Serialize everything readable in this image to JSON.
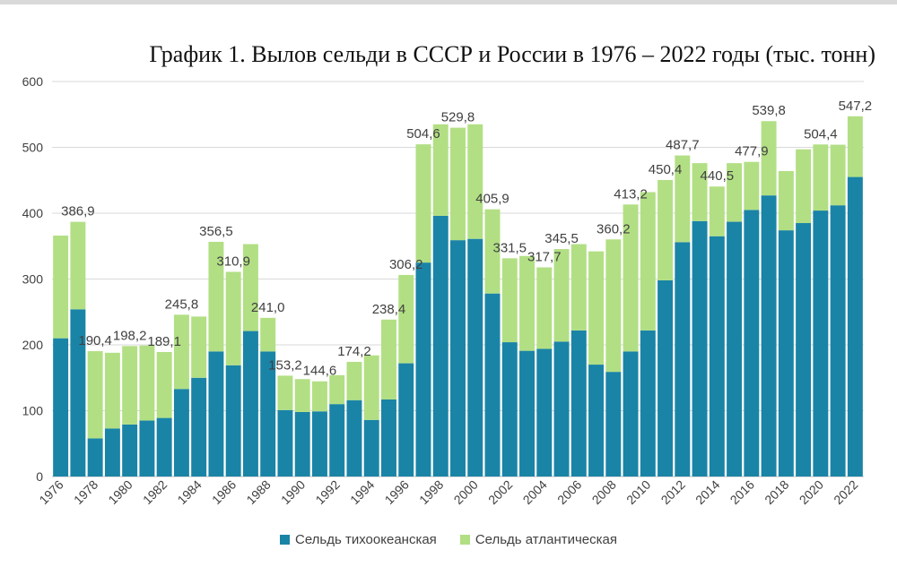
{
  "chart_data": {
    "type": "bar",
    "stacked": true,
    "title": "График 1. Вылов сельди в СССР и России в 1976 – 2022 годы (тыс. тонн)",
    "ylim": [
      0,
      600
    ],
    "yticks": [
      0,
      100,
      200,
      300,
      400,
      500,
      600
    ],
    "grid": true,
    "legend_position": "bottom",
    "x": [
      1976,
      1977,
      1978,
      1979,
      1980,
      1981,
      1982,
      1983,
      1984,
      1985,
      1986,
      1987,
      1988,
      1989,
      1990,
      1991,
      1992,
      1993,
      1994,
      1995,
      1996,
      1997,
      1998,
      1999,
      2000,
      2001,
      2002,
      2003,
      2004,
      2005,
      2006,
      2007,
      2008,
      2009,
      2010,
      2011,
      2012,
      2013,
      2014,
      2015,
      2016,
      2017,
      2018,
      2019,
      2020,
      2021,
      2022
    ],
    "x_tick_labels": [
      "1976",
      "1978",
      "1980",
      "1982",
      "1984",
      "1986",
      "1988",
      "1990",
      "1992",
      "1994",
      "1996",
      "1998",
      "2000",
      "2002",
      "2004",
      "2006",
      "2008",
      "2010",
      "2012",
      "2014",
      "2016",
      "2018",
      "2020",
      "2022"
    ],
    "series": [
      {
        "name": "Сельдь тихоокеанская",
        "color": "#1a84a6",
        "values": [
          210,
          254,
          58,
          73,
          79,
          85,
          89,
          133,
          150,
          190,
          169,
          221,
          190,
          101,
          98,
          99,
          110,
          116,
          86,
          117,
          172,
          325,
          396,
          359,
          361,
          278,
          204,
          191,
          194,
          205,
          222,
          170,
          159,
          190,
          222,
          298,
          356,
          388,
          365,
          387,
          405,
          427,
          374,
          385,
          404,
          412,
          455
        ]
      },
      {
        "name": "Сельдь атлантическая",
        "color": "#b2df84",
        "values": [
          156,
          132.9,
          132.4,
          115,
          119.2,
          114,
          100.1,
          112.8,
          93,
          166.5,
          141.9,
          132,
          51,
          52.2,
          50,
          45.6,
          44,
          58.2,
          98,
          121.4,
          134.2,
          179.6,
          139,
          170.8,
          174,
          127.9,
          127.5,
          144,
          123.7,
          140.5,
          131,
          172,
          201.2,
          223.2,
          210,
          152.4,
          131.7,
          88,
          75.5,
          89,
          72.9,
          112.8,
          90,
          112,
          100.4,
          92,
          92.2
        ]
      }
    ],
    "data_labels": [
      {
        "year": 1977,
        "text": "386,9"
      },
      {
        "year": 1978,
        "text": "190,4"
      },
      {
        "year": 1980,
        "text": "198,2"
      },
      {
        "year": 1982,
        "text": "189,1"
      },
      {
        "year": 1983,
        "text": "245,8"
      },
      {
        "year": 1985,
        "text": "356,5"
      },
      {
        "year": 1986,
        "text": "310,9"
      },
      {
        "year": 1988,
        "text": "241,0"
      },
      {
        "year": 1989,
        "text": "153,2"
      },
      {
        "year": 1991,
        "text": "144,6"
      },
      {
        "year": 1993,
        "text": "174,2"
      },
      {
        "year": 1995,
        "text": "238,4"
      },
      {
        "year": 1996,
        "text": "306,2"
      },
      {
        "year": 1997,
        "text": "504,6"
      },
      {
        "year": 1999,
        "text": "529,8"
      },
      {
        "year": 2001,
        "text": "405,9"
      },
      {
        "year": 2002,
        "text": "331,5"
      },
      {
        "year": 2004,
        "text": "317,7"
      },
      {
        "year": 2005,
        "text": "345,5"
      },
      {
        "year": 2008,
        "text": "360,2"
      },
      {
        "year": 2009,
        "text": "413,2"
      },
      {
        "year": 2011,
        "text": "450,4"
      },
      {
        "year": 2012,
        "text": "487,7"
      },
      {
        "year": 2014,
        "text": "440,5"
      },
      {
        "year": 2016,
        "text": "477,9"
      },
      {
        "year": 2017,
        "text": "539,8"
      },
      {
        "year": 2020,
        "text": "504,4"
      },
      {
        "year": 2022,
        "text": "547,2"
      }
    ]
  }
}
